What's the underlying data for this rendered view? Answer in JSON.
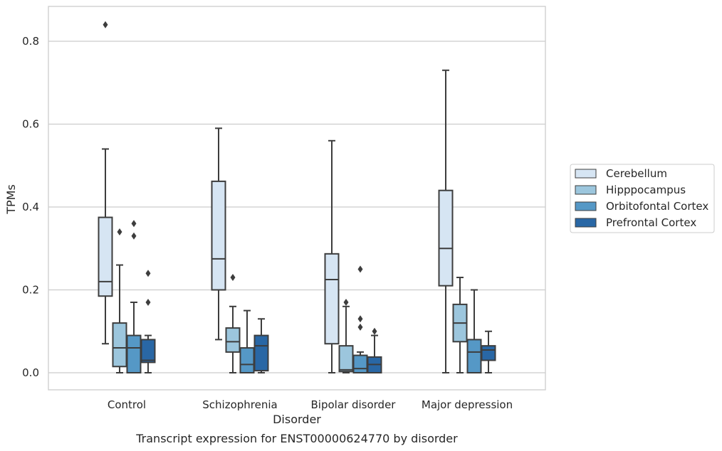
{
  "chart_data": {
    "type": "box",
    "caption": "Transcript expression for ENST00000624770 by disorder",
    "xlabel": "Disorder",
    "ylabel": "TPMs",
    "ylim": [
      -0.04,
      0.885
    ],
    "yticks": [
      0.0,
      0.2,
      0.4,
      0.6,
      0.8
    ],
    "ytick_labels": [
      "0.0",
      "0.2",
      "0.4",
      "0.6",
      "0.8"
    ],
    "grid": "horizontal",
    "legend_position": "right",
    "categories": [
      "Control",
      "Schizophrenia",
      "Bipolar disorder",
      "Major depression"
    ],
    "series": [
      {
        "name": "Cerebellum",
        "color": "#d6e5f3",
        "boxes": [
          {
            "whislo": 0.07,
            "q1": 0.185,
            "med": 0.22,
            "q3": 0.375,
            "whishi": 0.54,
            "fliers": [
              0.84
            ]
          },
          {
            "whislo": 0.08,
            "q1": 0.2,
            "med": 0.275,
            "q3": 0.462,
            "whishi": 0.59,
            "fliers": []
          },
          {
            "whislo": 0.0,
            "q1": 0.07,
            "med": 0.225,
            "q3": 0.287,
            "whishi": 0.56,
            "fliers": []
          },
          {
            "whislo": 0.0,
            "q1": 0.21,
            "med": 0.3,
            "q3": 0.44,
            "whishi": 0.73,
            "fliers": []
          }
        ]
      },
      {
        "name": "Hipppocampus",
        "color": "#9cc6dd",
        "boxes": [
          {
            "whislo": 0.0,
            "q1": 0.015,
            "med": 0.06,
            "q3": 0.12,
            "whishi": 0.26,
            "fliers": [
              0.34
            ]
          },
          {
            "whislo": 0.0,
            "q1": 0.05,
            "med": 0.075,
            "q3": 0.108,
            "whishi": 0.16,
            "fliers": [
              0.23
            ]
          },
          {
            "whislo": 0.0,
            "q1": 0.003,
            "med": 0.007,
            "q3": 0.065,
            "whishi": 0.16,
            "fliers": [
              0.17
            ]
          },
          {
            "whislo": 0.0,
            "q1": 0.075,
            "med": 0.12,
            "q3": 0.165,
            "whishi": 0.23,
            "fliers": []
          }
        ]
      },
      {
        "name": "Orbitofontal Cortex",
        "color": "#5598c6",
        "boxes": [
          {
            "whislo": 0.0,
            "q1": 0.0,
            "med": 0.06,
            "q3": 0.09,
            "whishi": 0.17,
            "fliers": [
              0.33,
              0.36
            ]
          },
          {
            "whislo": 0.0,
            "q1": 0.0,
            "med": 0.02,
            "q3": 0.06,
            "whishi": 0.15,
            "fliers": []
          },
          {
            "whislo": 0.0,
            "q1": 0.0,
            "med": 0.01,
            "q3": 0.042,
            "whishi": 0.05,
            "fliers": [
              0.11,
              0.13,
              0.25
            ]
          },
          {
            "whislo": 0.0,
            "q1": 0.0,
            "med": 0.05,
            "q3": 0.08,
            "whishi": 0.2,
            "fliers": []
          }
        ]
      },
      {
        "name": "Prefrontal Cortex",
        "color": "#2967a5",
        "boxes": [
          {
            "whislo": 0.0,
            "q1": 0.025,
            "med": 0.03,
            "q3": 0.08,
            "whishi": 0.09,
            "fliers": [
              0.17,
              0.24
            ]
          },
          {
            "whislo": 0.0,
            "q1": 0.005,
            "med": 0.065,
            "q3": 0.09,
            "whishi": 0.13,
            "fliers": []
          },
          {
            "whislo": 0.0,
            "q1": 0.0,
            "med": 0.02,
            "q3": 0.038,
            "whishi": 0.09,
            "fliers": [
              0.1
            ]
          },
          {
            "whislo": 0.0,
            "q1": 0.03,
            "med": 0.055,
            "q3": 0.065,
            "whishi": 0.1,
            "fliers": []
          }
        ]
      }
    ]
  },
  "colors": {
    "line": "#3d3d3d",
    "grid": "#cccccc",
    "frame": "#cccccc",
    "text": "#262626"
  }
}
